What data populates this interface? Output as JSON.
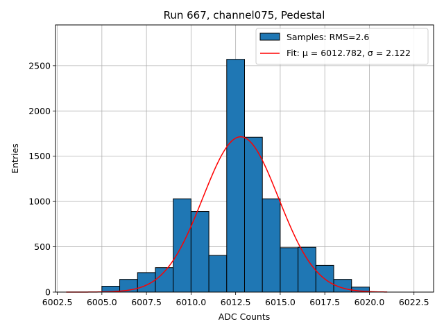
{
  "chart_data": {
    "type": "bar",
    "title": "Run 667, channel075, Pedestal",
    "xlabel": "ADC Counts",
    "ylabel": "Entries",
    "xlim": [
      6002.4,
      6023.6
    ],
    "ylim": [
      0,
      2950
    ],
    "grid": true,
    "legend_position": "top-right",
    "xticks": [
      6002.5,
      6005.0,
      6007.5,
      6010.0,
      6012.5,
      6015.0,
      6017.5,
      6020.0,
      6022.5
    ],
    "xtick_labels": [
      "6002.5",
      "6005.0",
      "6007.5",
      "6010.0",
      "6012.5",
      "6015.0",
      "6017.5",
      "6020.0",
      "6022.5"
    ],
    "yticks": [
      0,
      500,
      1000,
      1500,
      2000,
      2500
    ],
    "ytick_labels": [
      "0",
      "500",
      "1000",
      "1500",
      "2000",
      "2500"
    ],
    "histogram": {
      "name": "Samples: RMS=2.6",
      "color": "#1f77b4",
      "bin_edges": [
        6005,
        6006,
        6007,
        6008,
        6009,
        6010,
        6011,
        6012,
        6013,
        6014,
        6015,
        6016,
        6017,
        6018,
        6019,
        6020
      ],
      "counts": [
        65,
        140,
        215,
        270,
        1030,
        890,
        405,
        2570,
        1710,
        1030,
        490,
        495,
        295,
        140,
        55
      ]
    },
    "fit": {
      "name": "Fit: μ = 6012.782, σ = 2.122",
      "color": "#ff0000",
      "mu": 6012.782,
      "sigma": 2.122,
      "amplitude": 1715,
      "x_range": [
        6003,
        6021
      ]
    }
  }
}
